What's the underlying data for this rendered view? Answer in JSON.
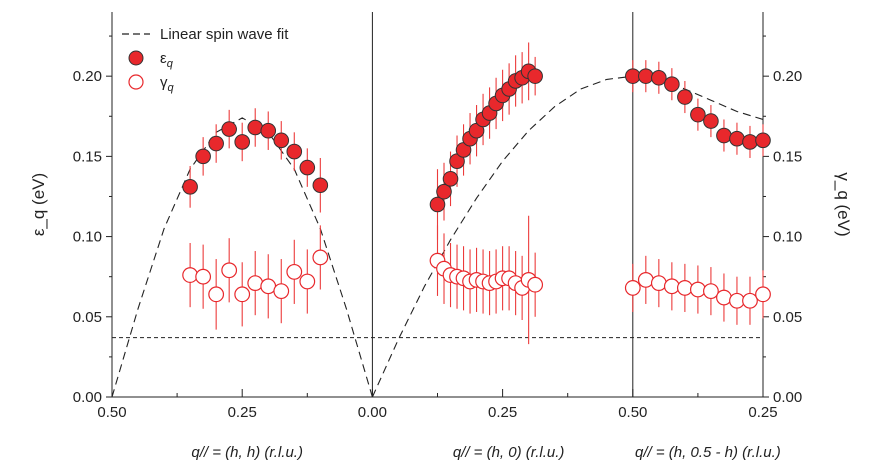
{
  "chart_data": {
    "type": "scatter",
    "title": "",
    "y_left_label": "ε_q (eV)",
    "y_right_label": "γ_q (eV)",
    "ylim": [
      0,
      0.24
    ],
    "y_ticks": [
      {
        "v": 0.0,
        "label": "0.00"
      },
      {
        "v": 0.05,
        "label": "0.05"
      },
      {
        "v": 0.1,
        "label": "0.10"
      },
      {
        "v": 0.15,
        "label": "0.15"
      },
      {
        "v": 0.2,
        "label": "0.20"
      }
    ],
    "path_segments": [
      {
        "label": "q// = (h, h) (r.l.u.)",
        "x_start": 0.5,
        "x_end": 0.0
      },
      {
        "label": "q// = (h, 0) (r.l.u.)",
        "x_start": 0.0,
        "x_end": 0.5
      },
      {
        "label": "q// = (h, 0.5 - h) (r.l.u.)",
        "x_start": 0.5,
        "x_end": 0.25
      }
    ],
    "x_tick_labels": [
      "0.50",
      "0.25",
      "0.00",
      "0.25",
      "0.50",
      "0.25"
    ],
    "horizontal_reference": 0.037,
    "legend": {
      "position": "top-left",
      "items": [
        {
          "key": "fit",
          "label": "Linear spin wave fit"
        },
        {
          "key": "eps",
          "label": "ε",
          "sub": "q"
        },
        {
          "key": "gam",
          "label": "γ",
          "sub": "q"
        }
      ]
    },
    "colors": {
      "accent": "#e8282c",
      "edge": "#333333",
      "errorbar": "#ec3b3b",
      "line": "#222222"
    },
    "series": [
      {
        "name": "ε_q",
        "segment": 0,
        "points": [
          {
            "h": 0.35,
            "y": 0.131,
            "err": 0.013
          },
          {
            "h": 0.325,
            "y": 0.15,
            "err": 0.012
          },
          {
            "h": 0.3,
            "y": 0.158,
            "err": 0.012
          },
          {
            "h": 0.275,
            "y": 0.167,
            "err": 0.012
          },
          {
            "h": 0.25,
            "y": 0.159,
            "err": 0.012
          },
          {
            "h": 0.225,
            "y": 0.168,
            "err": 0.012
          },
          {
            "h": 0.2,
            "y": 0.166,
            "err": 0.012
          },
          {
            "h": 0.175,
            "y": 0.16,
            "err": 0.012
          },
          {
            "h": 0.15,
            "y": 0.153,
            "err": 0.012
          },
          {
            "h": 0.125,
            "y": 0.143,
            "err": 0.012
          },
          {
            "h": 0.1,
            "y": 0.132,
            "err": 0.017
          }
        ]
      },
      {
        "name": "ε_q",
        "segment": 1,
        "points": [
          {
            "h": 0.125,
            "y": 0.12,
            "err": 0.022
          },
          {
            "h": 0.1375,
            "y": 0.128,
            "err": 0.018
          },
          {
            "h": 0.15,
            "y": 0.136,
            "err": 0.017
          },
          {
            "h": 0.1625,
            "y": 0.147,
            "err": 0.016
          },
          {
            "h": 0.175,
            "y": 0.154,
            "err": 0.016
          },
          {
            "h": 0.1875,
            "y": 0.161,
            "err": 0.016
          },
          {
            "h": 0.2,
            "y": 0.166,
            "err": 0.016
          },
          {
            "h": 0.2125,
            "y": 0.173,
            "err": 0.016
          },
          {
            "h": 0.225,
            "y": 0.177,
            "err": 0.016
          },
          {
            "h": 0.2375,
            "y": 0.183,
            "err": 0.016
          },
          {
            "h": 0.25,
            "y": 0.188,
            "err": 0.016
          },
          {
            "h": 0.2625,
            "y": 0.192,
            "err": 0.016
          },
          {
            "h": 0.275,
            "y": 0.197,
            "err": 0.016
          },
          {
            "h": 0.2875,
            "y": 0.199,
            "err": 0.016
          },
          {
            "h": 0.3,
            "y": 0.203,
            "err": 0.018
          },
          {
            "h": 0.3125,
            "y": 0.2,
            "err": 0.012
          }
        ]
      },
      {
        "name": "ε_q",
        "segment": 2,
        "points": [
          {
            "h": 0.5,
            "y": 0.2,
            "err": 0.01
          },
          {
            "h": 0.475,
            "y": 0.2,
            "err": 0.01
          },
          {
            "h": 0.45,
            "y": 0.199,
            "err": 0.01
          },
          {
            "h": 0.425,
            "y": 0.195,
            "err": 0.01
          },
          {
            "h": 0.4,
            "y": 0.187,
            "err": 0.01
          },
          {
            "h": 0.375,
            "y": 0.176,
            "err": 0.01
          },
          {
            "h": 0.35,
            "y": 0.172,
            "err": 0.01
          },
          {
            "h": 0.325,
            "y": 0.163,
            "err": 0.01
          },
          {
            "h": 0.3,
            "y": 0.161,
            "err": 0.01
          },
          {
            "h": 0.275,
            "y": 0.159,
            "err": 0.01
          },
          {
            "h": 0.25,
            "y": 0.16,
            "err": 0.01
          }
        ]
      },
      {
        "name": "γ_q",
        "segment": 0,
        "points": [
          {
            "h": 0.35,
            "y": 0.076,
            "err": 0.02
          },
          {
            "h": 0.325,
            "y": 0.075,
            "err": 0.02
          },
          {
            "h": 0.3,
            "y": 0.064,
            "err": 0.022
          },
          {
            "h": 0.275,
            "y": 0.079,
            "err": 0.02
          },
          {
            "h": 0.25,
            "y": 0.064,
            "err": 0.02
          },
          {
            "h": 0.225,
            "y": 0.071,
            "err": 0.02
          },
          {
            "h": 0.2,
            "y": 0.069,
            "err": 0.02
          },
          {
            "h": 0.175,
            "y": 0.066,
            "err": 0.02
          },
          {
            "h": 0.15,
            "y": 0.078,
            "err": 0.02
          },
          {
            "h": 0.125,
            "y": 0.072,
            "err": 0.02
          },
          {
            "h": 0.1,
            "y": 0.087,
            "err": 0.02
          }
        ]
      },
      {
        "name": "γ_q",
        "segment": 1,
        "points": [
          {
            "h": 0.125,
            "y": 0.085,
            "err": 0.022
          },
          {
            "h": 0.1375,
            "y": 0.08,
            "err": 0.022
          },
          {
            "h": 0.15,
            "y": 0.076,
            "err": 0.02
          },
          {
            "h": 0.1625,
            "y": 0.075,
            "err": 0.02
          },
          {
            "h": 0.175,
            "y": 0.074,
            "err": 0.02
          },
          {
            "h": 0.1875,
            "y": 0.072,
            "err": 0.02
          },
          {
            "h": 0.2,
            "y": 0.073,
            "err": 0.02
          },
          {
            "h": 0.2125,
            "y": 0.072,
            "err": 0.02
          },
          {
            "h": 0.225,
            "y": 0.071,
            "err": 0.02
          },
          {
            "h": 0.2375,
            "y": 0.072,
            "err": 0.02
          },
          {
            "h": 0.25,
            "y": 0.074,
            "err": 0.02
          },
          {
            "h": 0.2625,
            "y": 0.074,
            "err": 0.02
          },
          {
            "h": 0.275,
            "y": 0.071,
            "err": 0.02
          },
          {
            "h": 0.2875,
            "y": 0.068,
            "err": 0.02
          },
          {
            "h": 0.3,
            "y": 0.073,
            "err": 0.04
          },
          {
            "h": 0.3125,
            "y": 0.07,
            "err": 0.02
          }
        ]
      },
      {
        "name": "γ_q",
        "segment": 2,
        "points": [
          {
            "h": 0.5,
            "y": 0.068,
            "err": 0.015
          },
          {
            "h": 0.475,
            "y": 0.073,
            "err": 0.015
          },
          {
            "h": 0.45,
            "y": 0.071,
            "err": 0.015
          },
          {
            "h": 0.425,
            "y": 0.069,
            "err": 0.015
          },
          {
            "h": 0.4,
            "y": 0.068,
            "err": 0.015
          },
          {
            "h": 0.375,
            "y": 0.067,
            "err": 0.015
          },
          {
            "h": 0.35,
            "y": 0.066,
            "err": 0.015
          },
          {
            "h": 0.325,
            "y": 0.062,
            "err": 0.015
          },
          {
            "h": 0.3,
            "y": 0.06,
            "err": 0.015
          },
          {
            "h": 0.275,
            "y": 0.06,
            "err": 0.015
          },
          {
            "h": 0.25,
            "y": 0.064,
            "err": 0.015
          }
        ]
      }
    ],
    "fit": [
      {
        "segment": 0,
        "x": [
          0.5,
          0.45,
          0.4,
          0.35,
          0.3,
          0.25,
          0.2,
          0.15,
          0.1,
          0.05,
          0.0
        ],
        "y": [
          0.0,
          0.055,
          0.105,
          0.142,
          0.165,
          0.174,
          0.165,
          0.142,
          0.105,
          0.055,
          0.0
        ]
      },
      {
        "segment": 1,
        "x": [
          0.0,
          0.05,
          0.1,
          0.15,
          0.2,
          0.25,
          0.3,
          0.35,
          0.4,
          0.45,
          0.5
        ],
        "y": [
          0.0,
          0.036,
          0.069,
          0.098,
          0.124,
          0.147,
          0.166,
          0.181,
          0.192,
          0.198,
          0.2
        ]
      },
      {
        "segment": 2,
        "x": [
          0.5,
          0.45,
          0.4,
          0.35,
          0.3,
          0.25
        ],
        "y": [
          0.2,
          0.198,
          0.192,
          0.185,
          0.178,
          0.173
        ]
      }
    ]
  }
}
